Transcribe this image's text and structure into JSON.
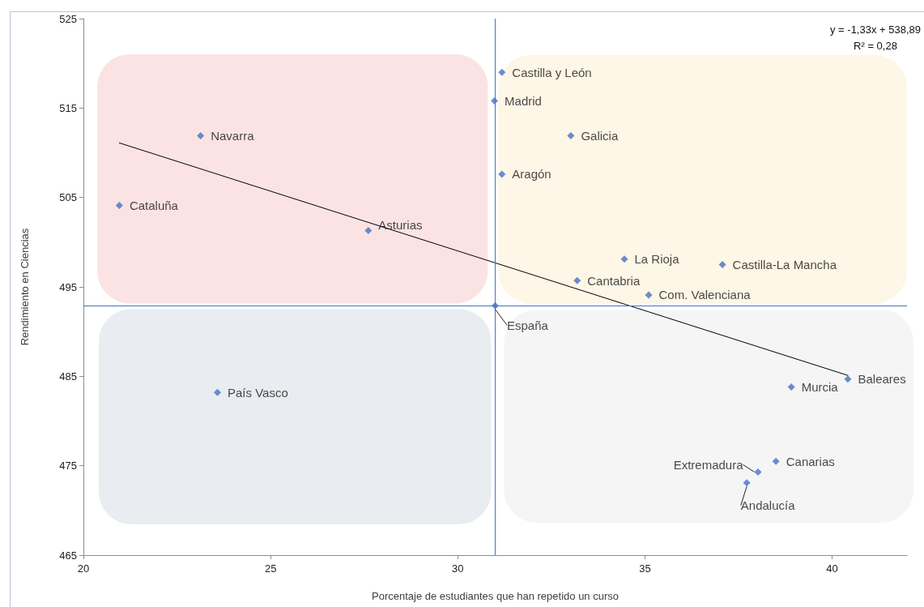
{
  "chart_data": {
    "type": "scatter",
    "xlabel": "Porcentaje de estudiantes que han repetido un curso",
    "ylabel": "Rendimiento en Ciencias",
    "annotations": [
      "y = -1,33x + 538,89",
      "R² = 0,28"
    ],
    "xlim": [
      20,
      42
    ],
    "xticks": [
      20,
      25,
      30,
      35,
      40
    ],
    "ylim": [
      465,
      525
    ],
    "yticks": [
      465,
      475,
      485,
      495,
      505,
      515,
      525
    ],
    "marker": "diamond",
    "series": [
      {
        "color": "#4472c4",
        "x": [
          20.96,
          23.13,
          27.61,
          23.58,
          30.98,
          31.18,
          31.18,
          33.02,
          33.19,
          34.45,
          37.07,
          35.1,
          31.0,
          40.42,
          38.91,
          38.5,
          38.02,
          37.72
        ],
        "values": [
          504.1,
          511.9,
          501.3,
          483.2,
          515.8,
          519.0,
          507.6,
          511.9,
          495.7,
          498.1,
          497.5,
          494.1,
          492.9,
          484.7,
          483.8,
          475.5,
          474.3,
          473.1
        ],
        "value_labels": [
          "Cataluña",
          "Navarra",
          "Asturias",
          "País Vasco",
          "Madrid",
          "Castilla y León",
          "Aragón",
          "Galicia",
          "Cantabria",
          "La Rioja",
          "Castilla-La Mancha",
          "Com. Valenciana",
          "España",
          "Baleares",
          "Murcia",
          "Canarias",
          "Extremadura",
          "Andalucía"
        ]
      },
      {
        "type": "line",
        "color": "#000000",
        "marker": "none",
        "x": [
          20.96,
          40.42
        ],
        "values": [
          511.1,
          485.1
        ]
      }
    ],
    "ref_lines": [
      {
        "axis": "x",
        "value": 31.0,
        "color": "#4472c4"
      },
      {
        "axis": "y",
        "value": 492.9,
        "color": "#4472c4"
      }
    ]
  }
}
